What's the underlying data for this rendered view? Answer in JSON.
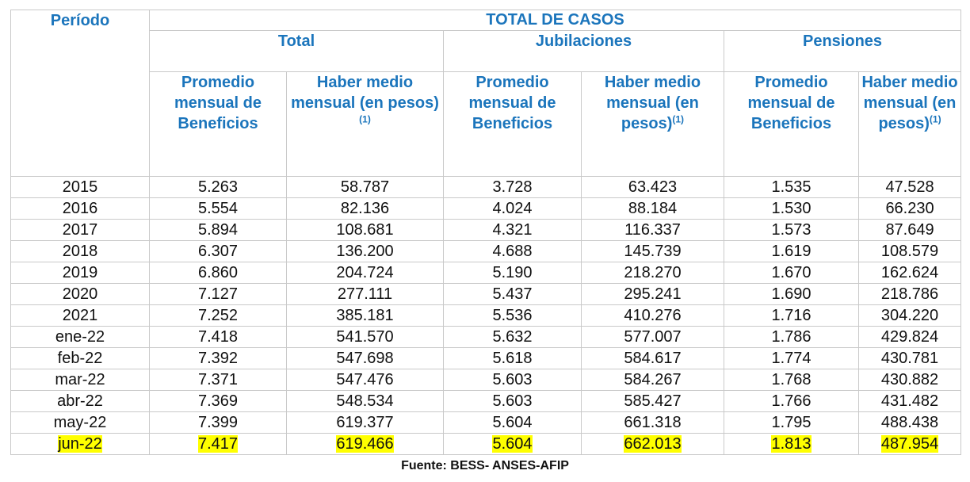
{
  "table": {
    "header": {
      "period": "Período",
      "group": "TOTAL DE CASOS",
      "sections": [
        "Total",
        "Jubilaciones",
        "Pensiones"
      ],
      "columns": [
        {
          "text": "Promedio mensual de Beneficios"
        },
        {
          "text": "Haber medio mensual (en pesos)",
          "note": "(1)"
        },
        {
          "text": "Promedio mensual de Beneficios"
        },
        {
          "text": "Haber medio mensual (en pesos)",
          "note": "(1)"
        },
        {
          "text": "Promedio mensual de Beneficios"
        },
        {
          "text": "Haber medio mensual (en pesos)",
          "note": "(1)"
        }
      ]
    },
    "rows": [
      [
        "2015",
        "5.263",
        "58.787",
        "3.728",
        "63.423",
        "1.535",
        "47.528"
      ],
      [
        "2016",
        "5.554",
        "82.136",
        "4.024",
        "88.184",
        "1.530",
        "66.230"
      ],
      [
        "2017",
        "5.894",
        "108.681",
        "4.321",
        "116.337",
        "1.573",
        "87.649"
      ],
      [
        "2018",
        "6.307",
        "136.200",
        "4.688",
        "145.739",
        "1.619",
        "108.579"
      ],
      [
        "2019",
        "6.860",
        "204.724",
        "5.190",
        "218.270",
        "1.670",
        "162.624"
      ],
      [
        "2020",
        "7.127",
        "277.111",
        "5.437",
        "295.241",
        "1.690",
        "218.786"
      ],
      [
        "2021",
        "7.252",
        "385.181",
        "5.536",
        "410.276",
        "1.716",
        "304.220"
      ],
      [
        "ene-22",
        "7.418",
        "541.570",
        "5.632",
        "577.007",
        "1.786",
        "429.824"
      ],
      [
        "feb-22",
        "7.392",
        "547.698",
        "5.618",
        "584.617",
        "1.774",
        "430.781"
      ],
      [
        "mar-22",
        "7.371",
        "547.476",
        "5.603",
        "584.267",
        "1.768",
        "430.882"
      ],
      [
        "abr-22",
        "7.369",
        "548.534",
        "5.603",
        "585.427",
        "1.766",
        "431.482"
      ],
      [
        "may-22",
        "7.399",
        "619.377",
        "5.604",
        "661.318",
        "1.795",
        "488.438"
      ],
      [
        "jun-22",
        "7.417",
        "619.466",
        "5.604",
        "662.013",
        "1.813",
        "487.954"
      ]
    ]
  },
  "source": "Fuente: BESS- ANSES-AFIP"
}
